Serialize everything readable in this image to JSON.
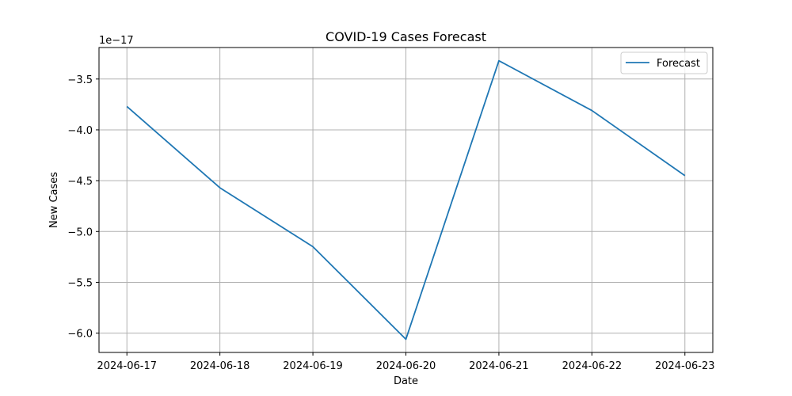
{
  "chart_data": {
    "type": "line",
    "title": "COVID-19 Cases Forecast",
    "xlabel": "Date",
    "ylabel": "New Cases",
    "y_offset_label": "1e−17",
    "x": [
      "2024-06-17",
      "2024-06-18",
      "2024-06-19",
      "2024-06-20",
      "2024-06-21",
      "2024-06-22",
      "2024-06-23"
    ],
    "x_ticks": [
      "2024-06-17",
      "2024-06-18",
      "2024-06-19",
      "2024-06-20",
      "2024-06-21",
      "2024-06-22",
      "2024-06-23"
    ],
    "series": [
      {
        "name": "Forecast",
        "color": "#1f77b4",
        "values": [
          -3.77e-17,
          -4.57e-17,
          -5.15e-17,
          -6.06e-17,
          -3.32e-17,
          -3.81e-17,
          -4.45e-17
        ]
      }
    ],
    "y_ticks": [
      -3.5e-17,
      -4e-17,
      -4.5e-17,
      -5e-17,
      -5.5e-17,
      -6e-17
    ],
    "y_tick_labels": [
      "−3.5",
      "−4.0",
      "−4.5",
      "−5.0",
      "−5.5",
      "−6.0"
    ],
    "ylim": [
      -6.19e-17,
      -3.19e-17
    ],
    "grid": true,
    "legend": "top-right"
  }
}
